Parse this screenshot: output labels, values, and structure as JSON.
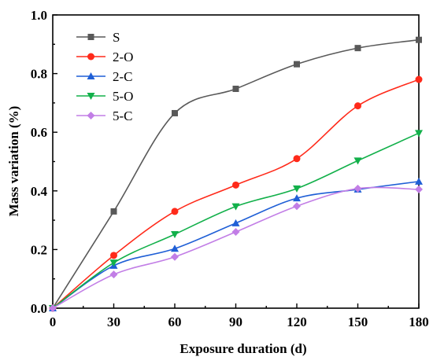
{
  "chart_data": {
    "type": "line",
    "title": "",
    "xlabel": "Exposure duration (d)",
    "ylabel": "Mass variation (%)",
    "xlim": [
      0,
      180
    ],
    "ylim": [
      0,
      1.0
    ],
    "x": [
      0,
      30,
      60,
      90,
      120,
      150,
      180
    ],
    "x_ticks": [
      "0",
      "30",
      "60",
      "90",
      "120",
      "150",
      "180"
    ],
    "y_ticks": [
      "0.0",
      "0.2",
      "0.4",
      "0.6",
      "0.8",
      "1.0"
    ],
    "grid": false,
    "legend_position": "top-left",
    "series": [
      {
        "name": "S",
        "color": "#595959",
        "marker": "square",
        "values": [
          0,
          0.33,
          0.665,
          0.748,
          0.832,
          0.887,
          0.915
        ]
      },
      {
        "name": "2-O",
        "color": "#ff2a1a",
        "marker": "circle",
        "values": [
          0,
          0.18,
          0.33,
          0.42,
          0.51,
          0.69,
          0.78
        ]
      },
      {
        "name": "2-C",
        "color": "#1f5fd6",
        "marker": "triangle-up",
        "values": [
          0,
          0.145,
          0.203,
          0.29,
          0.375,
          0.405,
          0.432
        ]
      },
      {
        "name": "5-O",
        "color": "#12b04a",
        "marker": "triangle-down",
        "values": [
          0,
          0.155,
          0.252,
          0.347,
          0.408,
          0.503,
          0.597
        ]
      },
      {
        "name": "5-C",
        "color": "#c27ee6",
        "marker": "diamond",
        "values": [
          0,
          0.115,
          0.175,
          0.26,
          0.348,
          0.408,
          0.405
        ]
      }
    ]
  }
}
